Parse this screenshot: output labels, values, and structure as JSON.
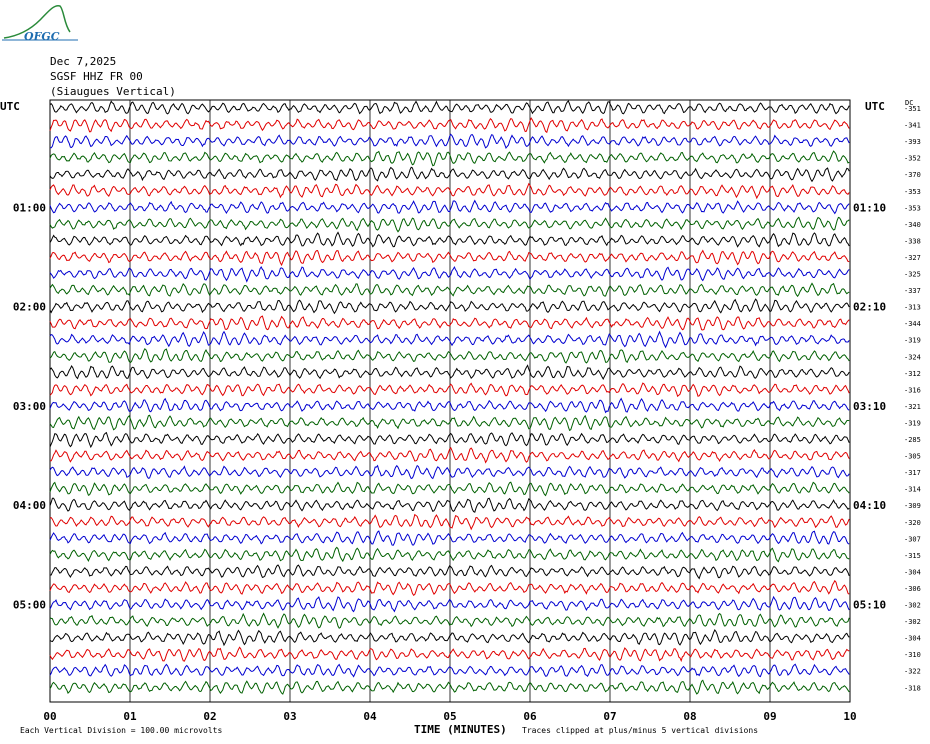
{
  "header": {
    "logo_text": "OFGC",
    "date": "Dec 7,2025",
    "station": "SGSF HHZ FR 00",
    "location": "(Siaugues Vertical)"
  },
  "axis": {
    "left_title": "UTC",
    "right_title": "UTC",
    "right_corner_label": "DC",
    "xlabel": "TIME (MINUTES)",
    "footer_left": "Each Vertical Division =  100.00 microvolts",
    "footer_right": "Traces clipped at plus/minus 5 vertical divisions"
  },
  "colors": {
    "cycle": [
      "#000000",
      "#e00000",
      "#0000d0",
      "#006000"
    ],
    "grid": "#000000"
  },
  "chart_data": {
    "type": "line",
    "title": "",
    "xlabel": "TIME (MINUTES)",
    "ylabel": "",
    "xlim": [
      0,
      10
    ],
    "x_ticks": [
      "00",
      "01",
      "02",
      "03",
      "04",
      "05",
      "06",
      "07",
      "08",
      "09",
      "10"
    ],
    "trace_count": 36,
    "left_hour_labels": [
      {
        "trace": 6,
        "label": "01:00"
      },
      {
        "trace": 12,
        "label": "02:00"
      },
      {
        "trace": 18,
        "label": "03:00"
      },
      {
        "trace": 24,
        "label": "04:00"
      },
      {
        "trace": 30,
        "label": "05:00"
      }
    ],
    "right_hour_labels": [
      {
        "trace": 6,
        "label": "01:10"
      },
      {
        "trace": 12,
        "label": "02:10"
      },
      {
        "trace": 18,
        "label": "03:10"
      },
      {
        "trace": 24,
        "label": "04:10"
      },
      {
        "trace": 30,
        "label": "05:10"
      }
    ],
    "dc_offsets": [
      -351,
      -341,
      -393,
      -352,
      -370,
      -353,
      -353,
      -340,
      -338,
      -327,
      -325,
      -337,
      -313,
      -344,
      -319,
      -324,
      -312,
      -316,
      -321,
      -319,
      -285,
      -305,
      -317,
      -314,
      -309,
      -320,
      -307,
      -315,
      -304,
      -306,
      -302,
      -302,
      -304,
      -310,
      -322,
      -318
    ]
  }
}
